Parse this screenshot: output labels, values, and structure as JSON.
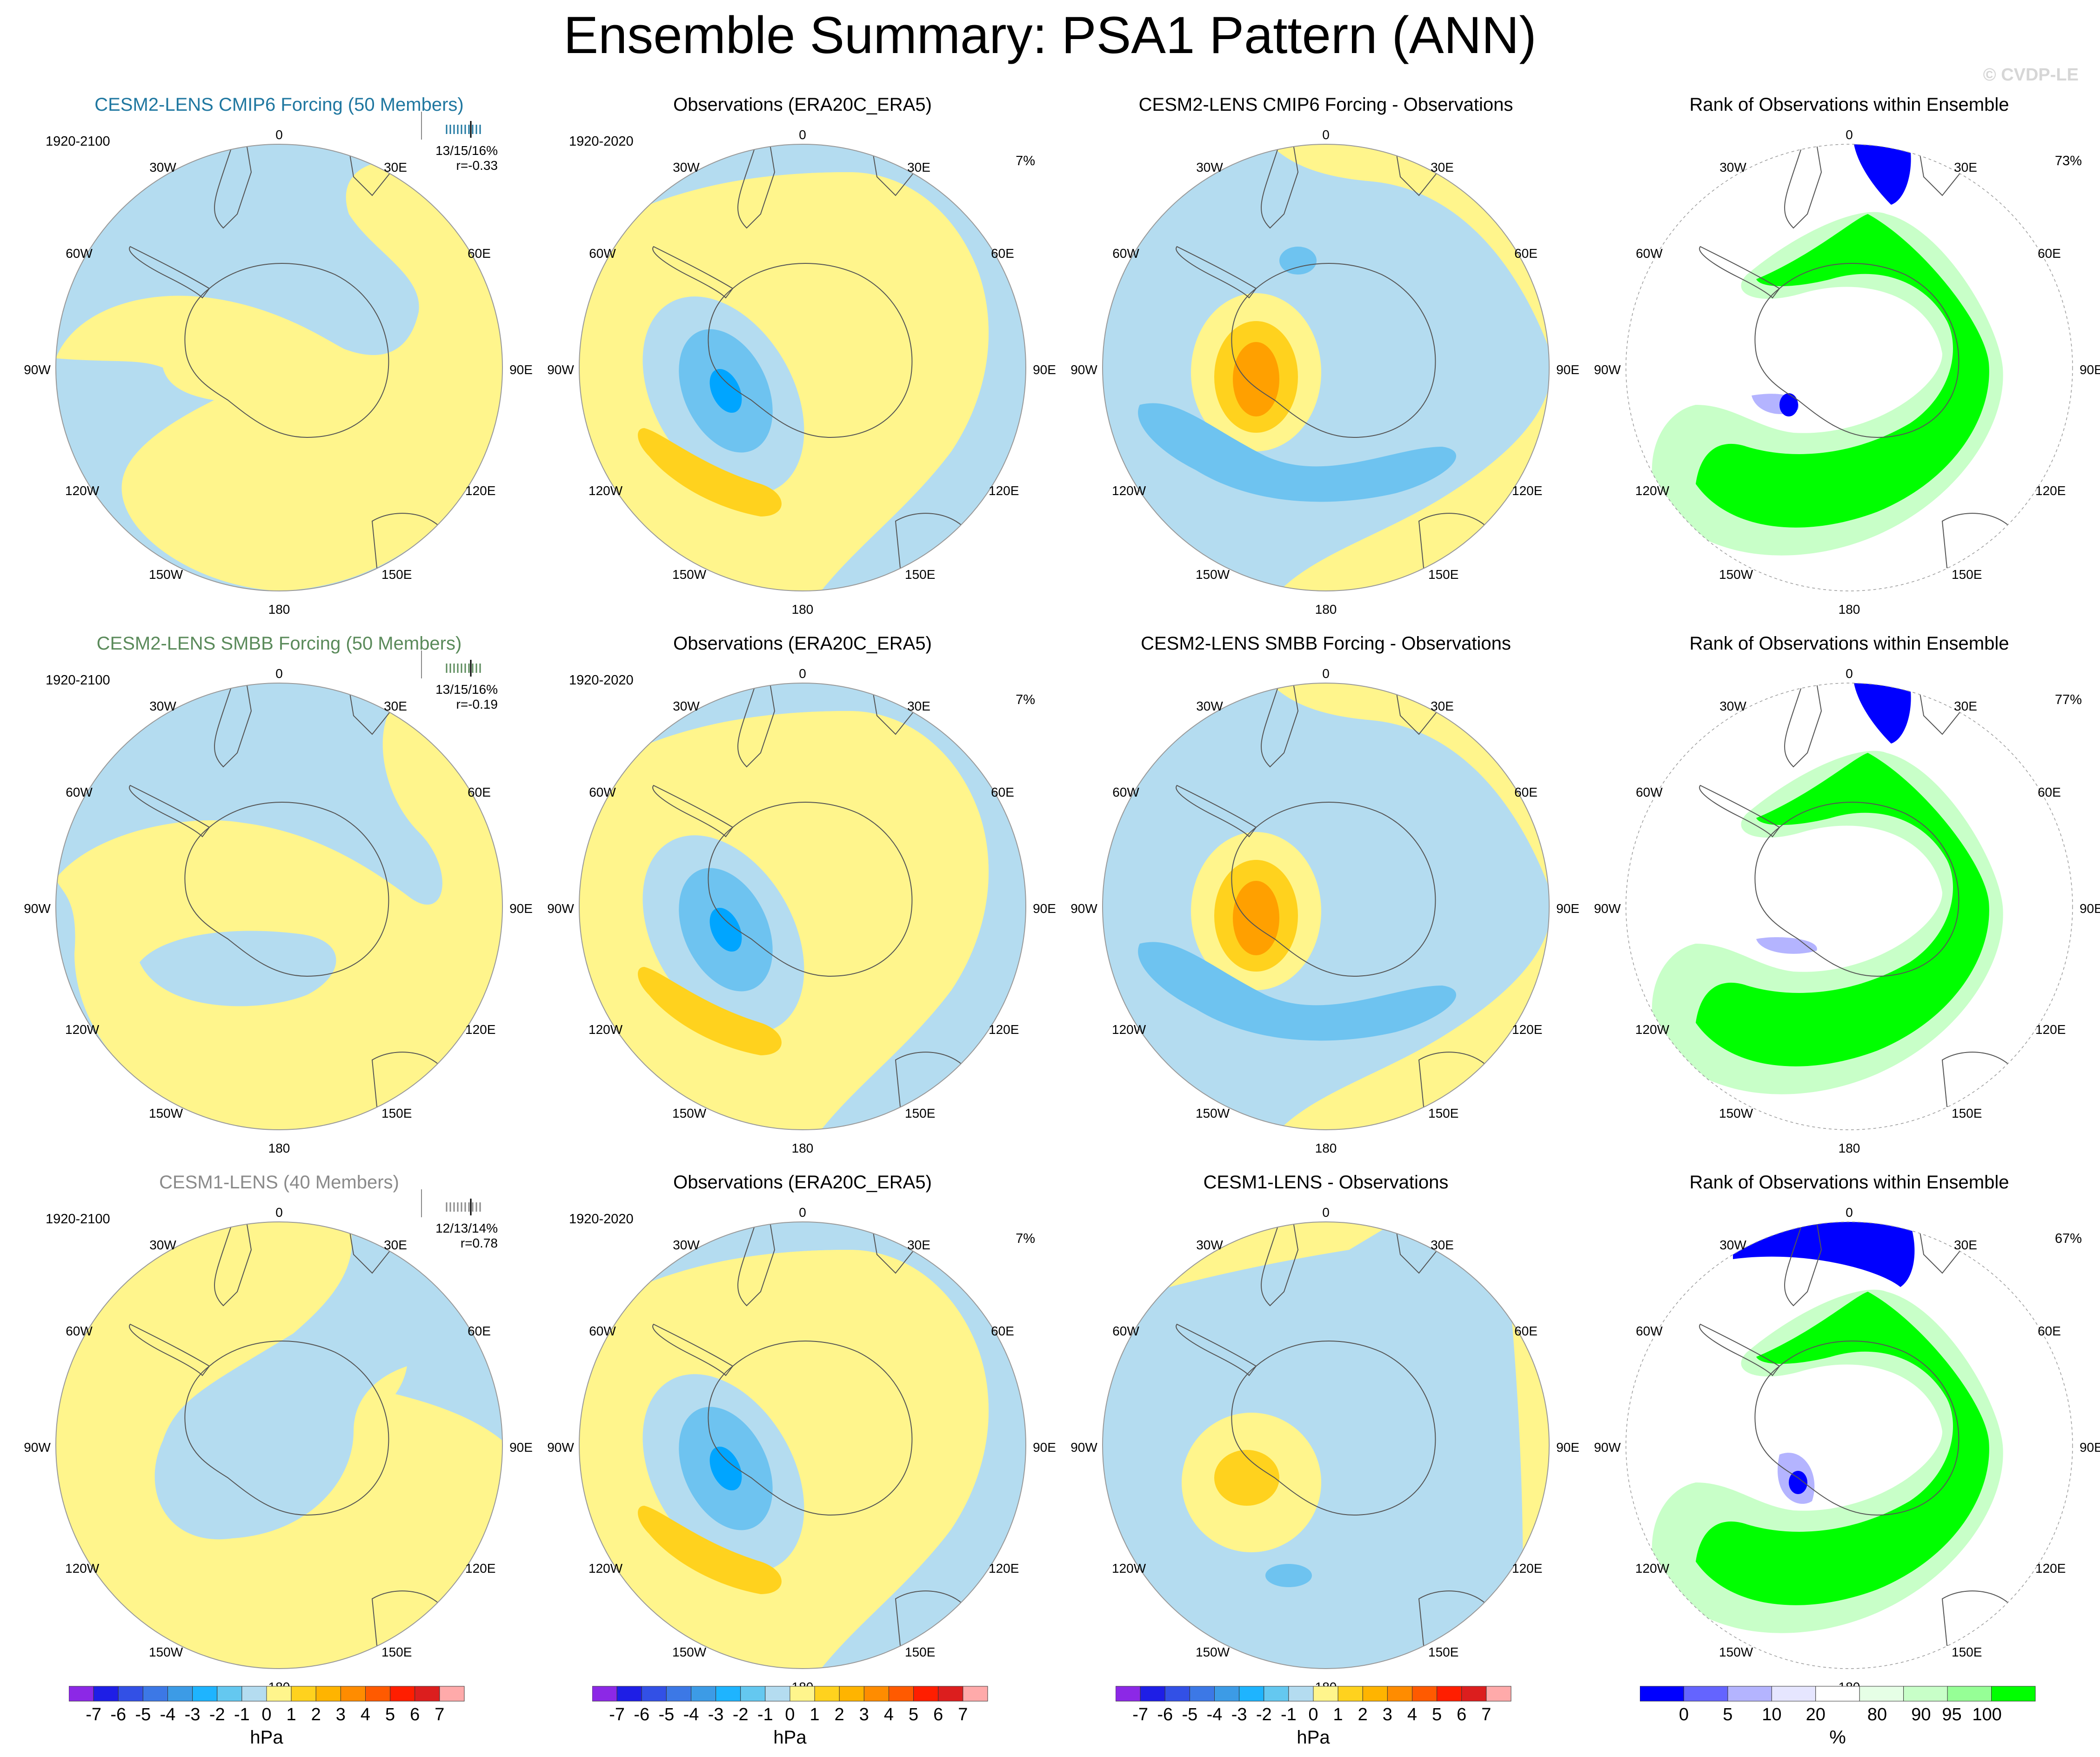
{
  "title": "Ensemble Summary: PSA1 Pattern (ANN)",
  "watermark": "© CVDP-LE",
  "colors": {
    "pos1": "#fff58c",
    "pos2": "#ffd21e",
    "pos3": "#ffa000",
    "neg1": "#b4dcf0",
    "neg2": "#6ec3f0",
    "neg3": "#00a5ff",
    "rank_green": "#00ff00",
    "rank_blue": "#0000ff",
    "rank_lightgreen": "#c8ffc8",
    "rank_lavender": "#b4b4ff"
  },
  "map_labels": {
    "lon_top": "0",
    "lon_bottom": "180",
    "w30": "30W",
    "e30": "30E",
    "w60": "60W",
    "e60": "60E",
    "w90": "90W",
    "e90": "90E",
    "w120": "120W",
    "e120": "120E",
    "w150": "150W",
    "e150": "150E"
  },
  "rows": [
    {
      "model": {
        "title": "CESM2-LENS CMIP6 Forcing (50 Members)",
        "title_color": "#1f77a0",
        "period": "1920-2100",
        "stats": "13/15/16%",
        "r": "r=-0.33"
      },
      "obs": {
        "title": "Observations (ERA20C_ERA5)",
        "period": "1920-2020",
        "pct": "7%"
      },
      "diff": {
        "title": "CESM2-LENS CMIP6 Forcing - Observations"
      },
      "rank": {
        "title": "Rank of Observations within Ensemble",
        "pct": "73%"
      }
    },
    {
      "model": {
        "title": "CESM2-LENS SMBB Forcing (50 Members)",
        "title_color": "#5a8a5a",
        "period": "1920-2100",
        "stats": "13/15/16%",
        "r": "r=-0.19"
      },
      "obs": {
        "title": "Observations (ERA20C_ERA5)",
        "period": "1920-2020",
        "pct": "7%"
      },
      "diff": {
        "title": "CESM2-LENS SMBB Forcing - Observations"
      },
      "rank": {
        "title": "Rank of Observations within Ensemble",
        "pct": "77%"
      }
    },
    {
      "model": {
        "title": "CESM1-LENS (40 Members)",
        "title_color": "#8a8a8a",
        "period": "1920-2100",
        "stats": "12/13/14%",
        "r": "r=0.78"
      },
      "obs": {
        "title": "Observations (ERA20C_ERA5)",
        "period": "1920-2020",
        "pct": "7%"
      },
      "diff": {
        "title": "CESM1-LENS - Observations"
      },
      "rank": {
        "title": "Rank of Observations within Ensemble",
        "pct": "67%"
      }
    }
  ],
  "colorbars": {
    "hpa": {
      "unit": "hPa",
      "ticks": [
        "-7",
        "-6",
        "-5",
        "-4",
        "-3",
        "-2",
        "-1",
        "0",
        "1",
        "2",
        "3",
        "4",
        "5",
        "6",
        "7"
      ],
      "colors": [
        "#8c28e6",
        "#1e1ee6",
        "#3250e6",
        "#3c78e6",
        "#3c9be6",
        "#1eb4ff",
        "#64c8f0",
        "#b4dcf0",
        "#fff58c",
        "#ffd21e",
        "#ffb400",
        "#ff8c00",
        "#ff5a00",
        "#ff1e00",
        "#dc1e1e",
        "#ffaaaa"
      ]
    },
    "pct": {
      "unit": "%",
      "ticks": [
        "0",
        "5",
        "10",
        "20",
        "80",
        "90",
        "95",
        "100"
      ],
      "colors": [
        "#0000ff",
        "#6464ff",
        "#b4b4ff",
        "#e6e6ff",
        "#ffffff",
        "#e6ffe6",
        "#c8ffc8",
        "#96ff96",
        "#00ff00"
      ]
    }
  },
  "chart_data": [
    {
      "type": "heatmap",
      "title": "CESM2-LENS CMIP6 Forcing (50 Members)",
      "units": "hPa",
      "period": "1920-2100",
      "pattern_corr": -0.33,
      "pct_var": "13/15/16%"
    },
    {
      "type": "heatmap",
      "title": "Observations (ERA20C_ERA5)",
      "units": "hPa",
      "period": "1920-2020",
      "pct_var": "7%",
      "min": -4,
      "max": 2
    },
    {
      "type": "heatmap",
      "title": "CESM2-LENS CMIP6 Forcing - Observations",
      "units": "hPa",
      "min": -2,
      "max": 3
    },
    {
      "type": "heatmap",
      "title": "Rank of Observations within Ensemble",
      "units": "%",
      "pct": "73%"
    },
    {
      "type": "heatmap",
      "title": "CESM2-LENS SMBB Forcing (50 Members)",
      "units": "hPa",
      "period": "1920-2100",
      "pattern_corr": -0.19,
      "pct_var": "13/15/16%"
    },
    {
      "type": "heatmap",
      "title": "Observations (ERA20C_ERA5)",
      "units": "hPa",
      "period": "1920-2020",
      "pct_var": "7%"
    },
    {
      "type": "heatmap",
      "title": "CESM2-LENS SMBB Forcing - Observations",
      "units": "hPa"
    },
    {
      "type": "heatmap",
      "title": "Rank of Observations within Ensemble",
      "units": "%",
      "pct": "77%"
    },
    {
      "type": "heatmap",
      "title": "CESM1-LENS (40 Members)",
      "units": "hPa",
      "period": "1920-2100",
      "pattern_corr": 0.78,
      "pct_var": "12/13/14%"
    },
    {
      "type": "heatmap",
      "title": "Observations (ERA20C_ERA5)",
      "units": "hPa",
      "period": "1920-2020",
      "pct_var": "7%"
    },
    {
      "type": "heatmap",
      "title": "CESM1-LENS - Observations",
      "units": "hPa"
    },
    {
      "type": "heatmap",
      "title": "Rank of Observations within Ensemble",
      "units": "%",
      "pct": "67%"
    }
  ]
}
